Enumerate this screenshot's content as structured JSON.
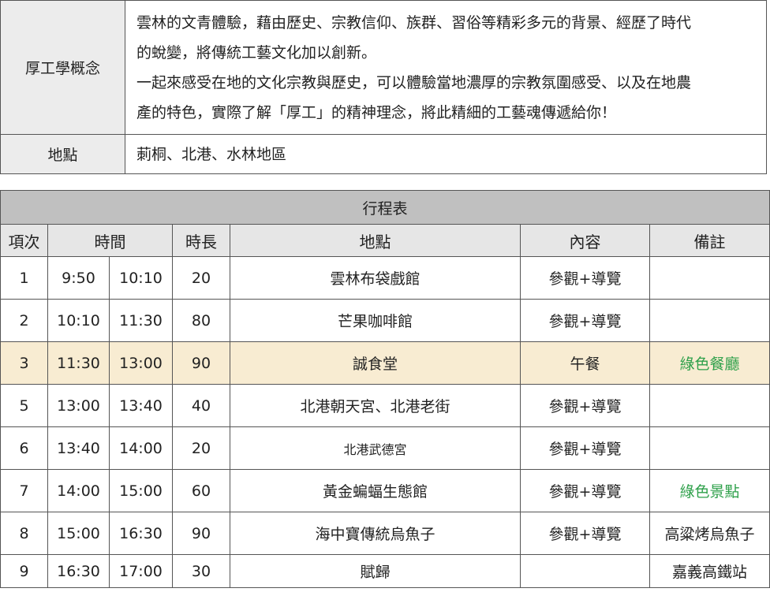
{
  "info": {
    "concept_label": "厚工學概念",
    "concept_lines": [
      "雲林的文青體驗，藉由歷史、宗教信仰、族群、習俗等精彩多元的背景、經歷了時代",
      "的蛻變，將傳統工藝文化加以創新。",
      "一起來感受在地的文化宗教與歷史，可以體驗當地濃厚的宗教氛圍感受、以及在地農",
      "產的特色，實際了解「厚工」的精神理念，將此精細的工藝魂傳遞給你！"
    ],
    "location_label": "地點",
    "location_value": "莿桐、北港、水林地區"
  },
  "schedule": {
    "title": "行程表",
    "headers": [
      "項次",
      "時間",
      "時長",
      "地點",
      "內容",
      "備註"
    ],
    "highlight_color": "#f8ecd2",
    "note_green": "#2ea04a",
    "rows": [
      {
        "no": "1",
        "start": "9:50",
        "end": "10:10",
        "dur": "20",
        "place": "雲林布袋戲館",
        "content": "參觀+導覽",
        "note": ""
      },
      {
        "no": "2",
        "start": "10:10",
        "end": "11:30",
        "dur": "80",
        "place": "芒果咖啡館",
        "content": "參觀+導覽",
        "note": ""
      },
      {
        "no": "3",
        "start": "11:30",
        "end": "13:00",
        "dur": "90",
        "place": "誠食堂",
        "content": "午餐",
        "note": "綠色餐廳"
      },
      {
        "no": "5",
        "start": "13:00",
        "end": "13:40",
        "dur": "40",
        "place": "北港朝天宮、北港老街",
        "content": "參觀+導覽",
        "note": ""
      },
      {
        "no": "6",
        "start": "13:40",
        "end": "14:00",
        "dur": "20",
        "place": "北港武德宮",
        "content": "參觀+導覽",
        "note": ""
      },
      {
        "no": "7",
        "start": "14:00",
        "end": "15:00",
        "dur": "60",
        "place": "黃金蝙蝠生態館",
        "content": "參觀+導覽",
        "note": "綠色景點"
      },
      {
        "no": "8",
        "start": "15:00",
        "end": "16:30",
        "dur": "90",
        "place": "海中寶傳統烏魚子",
        "content": "參觀+導覽",
        "note": "高粱烤烏魚子"
      },
      {
        "no": "9",
        "start": "16:30",
        "end": "17:00",
        "dur": "30",
        "place": "賦歸",
        "content": "",
        "note": "嘉義高鐵站"
      }
    ]
  }
}
